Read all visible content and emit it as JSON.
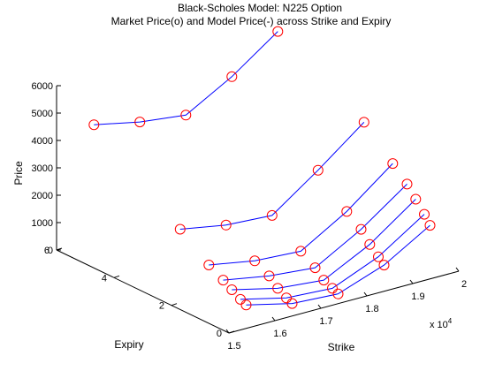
{
  "chart_data": {
    "type": "line",
    "projection": "3d",
    "title": "Black-Scholes Model: N225 Option",
    "subtitle": "Market Price(o) and Model Price(-) across Strike and Expiry",
    "xlabel": "Strike",
    "ylabel": "Expiry",
    "zlabel": "Price",
    "x_exponent_label": "x 10",
    "x_exponent_power": "4",
    "xlim": [
      1.5,
      2.0
    ],
    "ylim": [
      0,
      6
    ],
    "zlim": [
      0,
      6000
    ],
    "x_ticks": [
      "1.5",
      "1.6",
      "1.7",
      "1.8",
      "1.9",
      "2"
    ],
    "y_ticks": [
      "0",
      "2",
      "4",
      "6"
    ],
    "z_ticks": [
      "0",
      "1000",
      "2000",
      "3000",
      "4000",
      "5000",
      "6000"
    ],
    "series": [
      {
        "expiry": 0.2,
        "strike": [
          1.55,
          1.65,
          1.75,
          1.85,
          1.95
        ],
        "price": [
          700,
          300,
          200,
          800,
          1800
        ]
      },
      {
        "expiry": 0.4,
        "strike": [
          1.55,
          1.65,
          1.75,
          1.85,
          1.95
        ],
        "price": [
          800,
          400,
          300,
          1000,
          2100
        ]
      },
      {
        "expiry": 0.7,
        "strike": [
          1.55,
          1.65,
          1.75,
          1.85,
          1.95
        ],
        "price": [
          1000,
          600,
          450,
          1300,
          2500
        ]
      },
      {
        "expiry": 1.0,
        "strike": [
          1.55,
          1.65,
          1.75,
          1.85,
          1.95
        ],
        "price": [
          1200,
          900,
          750,
          1700,
          2900
        ]
      },
      {
        "expiry": 1.5,
        "strike": [
          1.55,
          1.65,
          1.75,
          1.85,
          1.95
        ],
        "price": [
          1500,
          1200,
          1100,
          2100,
          3400
        ]
      },
      {
        "expiry": 2.5,
        "strike": [
          1.55,
          1.65,
          1.75,
          1.85,
          1.95
        ],
        "price": [
          2300,
          2000,
          1900,
          3100,
          4400
        ]
      },
      {
        "expiry": 5.5,
        "strike": [
          1.55,
          1.65,
          1.75,
          1.85,
          1.95
        ],
        "price": [
          4600,
          4250,
          4050,
          5000,
          6200
        ]
      }
    ],
    "line_color": "#0000ff",
    "marker_color": "#ff0000",
    "grid": false,
    "legend": "none"
  }
}
